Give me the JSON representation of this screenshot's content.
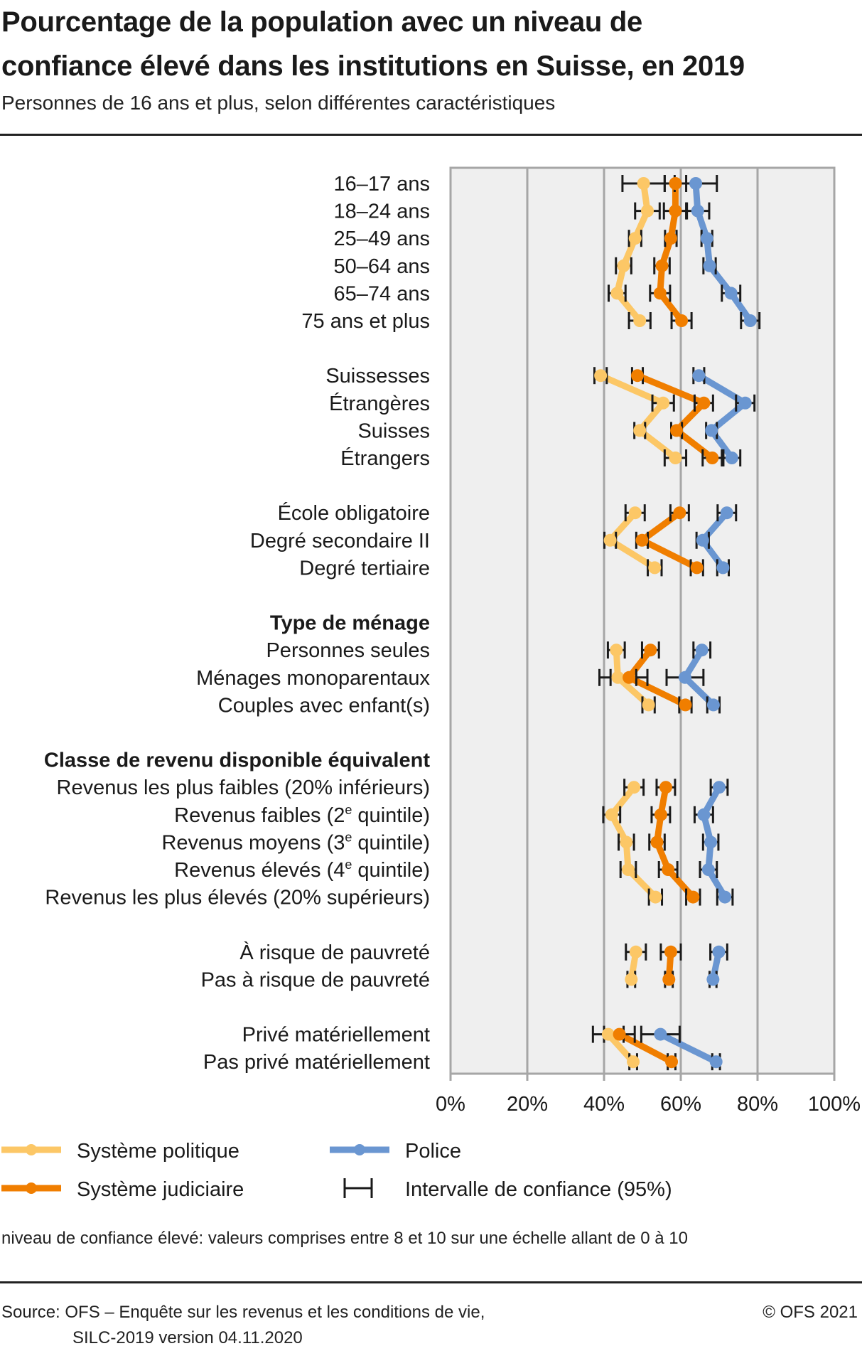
{
  "header": {
    "title_line1": "Pourcentage de la population avec un niveau de",
    "title_line2": "confiance élevé dans les institutions en Suisse, en 2019",
    "subtitle": "Personnes de 16 ans et plus, selon différentes caractéristiques"
  },
  "chart_data": {
    "type": "dot-line with confidence intervals (horizontal)",
    "title": "Pourcentage de la population avec un niveau de confiance élevé dans les institutions en Suisse, en 2019",
    "subtitle": "Personnes de 16 ans et plus, selon différentes caractéristiques",
    "xlabel": "",
    "ylabel": "",
    "xlim": [
      0,
      100
    ],
    "x_ticks": [
      "0%",
      "20%",
      "40%",
      "60%",
      "80%",
      "100%"
    ],
    "grid": "vertical",
    "legend_position": "bottom",
    "groups": [
      {
        "heading": "",
        "categories": [
          "16–17 ans",
          "18–24 ans",
          "25–49 ans",
          "50–64 ans",
          "65–74 ans",
          "75 ans et plus"
        ]
      },
      {
        "heading": "",
        "categories": [
          "Suissesses",
          "Étrangères",
          "Suisses",
          "Étrangers"
        ]
      },
      {
        "heading": "",
        "categories": [
          "École obligatoire",
          "Degré secondaire II",
          "Degré tertiaire"
        ]
      },
      {
        "heading": "Type de ménage",
        "categories": [
          "Personnes seules",
          "Ménages monoparentaux",
          "Couples avec enfant(s)"
        ]
      },
      {
        "heading": "Classe de revenu disponible équivalent",
        "categories": [
          "Revenus les plus faibles (20% inférieurs)",
          "Revenus faibles (2e quintile)",
          "Revenus moyens (3e quintile)",
          "Revenus élevés (4e quintile)",
          "Revenus les plus élevés (20% supérieurs)"
        ]
      },
      {
        "heading": "",
        "categories": [
          "À risque de pauvreté",
          "Pas à risque de pauvreté"
        ]
      },
      {
        "heading": "",
        "categories": [
          "Privé matériellement",
          "Pas privé matériellement"
        ]
      }
    ],
    "series": [
      {
        "name": "Système politique",
        "color": "#FCC766",
        "values": [
          [
            50.3,
            51.3,
            48.1,
            45.1,
            43.4,
            49.3
          ],
          [
            39.1,
            55.4,
            49.3,
            58.6
          ],
          [
            48.1,
            41.6,
            53.2
          ],
          [
            43.2,
            43.6,
            51.6
          ],
          [
            47.8,
            42.0,
            45.8,
            46.3,
            53.4
          ],
          [
            48.3,
            47.1
          ],
          [
            41.1,
            47.6
          ]
        ],
        "ci": [
          [
            5.5,
            3.2,
            1.6,
            2.0,
            2.2,
            2.8
          ],
          [
            1.6,
            2.8,
            1.4,
            2.8
          ],
          [
            2.5,
            1.5,
            1.8
          ],
          [
            2.2,
            4.8,
            1.6
          ],
          [
            2.5,
            2.2,
            2.0,
            2.0,
            1.7
          ],
          [
            2.6,
            1.0
          ],
          [
            4.0,
            1.0
          ]
        ]
      },
      {
        "name": "Système judiciaire",
        "color": "#F07E00",
        "values": [
          [
            58.6,
            58.6,
            57.4,
            55.1,
            54.6,
            60.2
          ],
          [
            48.7,
            66.0,
            58.9,
            68.2
          ],
          [
            59.7,
            49.9,
            64.2
          ],
          [
            52.1,
            46.5,
            61.2
          ],
          [
            56.1,
            54.8,
            53.8,
            56.7,
            63.2
          ],
          [
            57.4,
            56.9
          ],
          [
            44.0,
            57.6
          ]
        ],
        "ci": [
          [
            2.8,
            3.0,
            1.5,
            2.0,
            2.6,
            2.6
          ],
          [
            1.4,
            2.4,
            1.4,
            2.5
          ],
          [
            2.4,
            1.5,
            1.6
          ],
          [
            2.2,
            4.8,
            1.6
          ],
          [
            2.4,
            2.4,
            2.0,
            2.4,
            1.8
          ],
          [
            2.6,
            1.0
          ],
          [
            4.0,
            1.0
          ]
        ]
      },
      {
        "name": "Police",
        "color": "#6A96D1",
        "values": [
          [
            63.9,
            64.4,
            66.8,
            67.5,
            73.1,
            78.1
          ],
          [
            64.7,
            76.8,
            68.0,
            73.3
          ],
          [
            72.0,
            65.7,
            71.0
          ],
          [
            65.5,
            61.1,
            68.5
          ],
          [
            70.0,
            66.0,
            67.8,
            67.2,
            71.5
          ],
          [
            69.9,
            68.4
          ],
          [
            54.7,
            69.2
          ]
        ],
        "ci": [
          [
            5.5,
            3.0,
            1.4,
            1.6,
            2.4,
            2.4
          ],
          [
            1.4,
            2.4,
            1.4,
            2.2
          ],
          [
            2.4,
            1.6,
            1.5
          ],
          [
            2.2,
            4.8,
            1.6
          ],
          [
            2.2,
            2.4,
            2.0,
            2.2,
            2.0
          ],
          [
            2.2,
            0.9
          ],
          [
            5.0,
            1.0
          ]
        ]
      }
    ],
    "ci_legend": "Intervalle de confiance (95%)"
  },
  "legend": {
    "items": [
      {
        "label": "Système politique",
        "color": "#FCC766"
      },
      {
        "label": "Système judiciaire",
        "color": "#F07E00"
      },
      {
        "label": "Police",
        "color": "#6A96D1"
      },
      {
        "label": "Intervalle de confiance (95%)",
        "color": "#1a1a1a"
      }
    ]
  },
  "footnote": "niveau de confiance élevé: valeurs comprises entre 8 et 10 sur une échelle allant de 0 à 10",
  "footer": {
    "source_line1": "Source: OFS – Enquête sur les revenus et les conditions de vie,",
    "source_line2": "SILC-2019 version 04.11.2020",
    "copyright": "© OFS 2021"
  }
}
